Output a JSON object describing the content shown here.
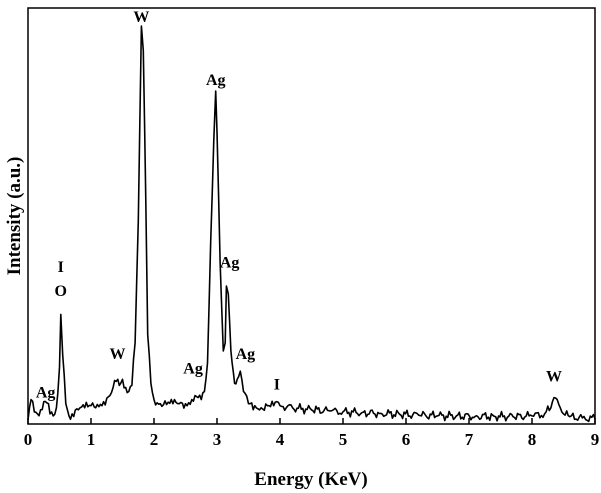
{
  "chart_data": {
    "type": "line",
    "title": "",
    "xlabel": "Energy (KeV)",
    "ylabel": "Intensity (a.u.)",
    "xlim": [
      0,
      9
    ],
    "ylim": [
      0,
      100
    ],
    "x_ticks": [
      "0",
      "1",
      "2",
      "3",
      "4",
      "5",
      "6",
      "7",
      "8",
      "9"
    ],
    "y_ticks_shown": false,
    "grid": false,
    "legend": "none",
    "line_color": "#000000",
    "series": [
      {
        "name": "",
        "points": [
          [
            0.0,
            1.0
          ],
          [
            0.05,
            6.0
          ],
          [
            0.1,
            3.0
          ],
          [
            0.15,
            2.5
          ],
          [
            0.2,
            3.5
          ],
          [
            0.25,
            5.5
          ],
          [
            0.3,
            5.2
          ],
          [
            0.35,
            2.5
          ],
          [
            0.4,
            2.0
          ],
          [
            0.45,
            4.0
          ],
          [
            0.5,
            14.0
          ],
          [
            0.52,
            27.0
          ],
          [
            0.55,
            17.0
          ],
          [
            0.6,
            5.0
          ],
          [
            0.65,
            2.0
          ],
          [
            0.7,
            2.5
          ],
          [
            0.8,
            3.5
          ],
          [
            0.9,
            4.0
          ],
          [
            1.0,
            4.5
          ],
          [
            1.1,
            4.8
          ],
          [
            1.2,
            5.5
          ],
          [
            1.3,
            7.0
          ],
          [
            1.35,
            9.0
          ],
          [
            1.4,
            10.5
          ],
          [
            1.45,
            9.5
          ],
          [
            1.5,
            11.0
          ],
          [
            1.55,
            9.0
          ],
          [
            1.6,
            8.0
          ],
          [
            1.65,
            9.5
          ],
          [
            1.7,
            20.0
          ],
          [
            1.75,
            50.0
          ],
          [
            1.8,
            98.0
          ],
          [
            1.83,
            92.0
          ],
          [
            1.87,
            55.0
          ],
          [
            1.9,
            22.0
          ],
          [
            1.95,
            10.0
          ],
          [
            2.0,
            6.0
          ],
          [
            2.1,
            5.0
          ],
          [
            2.2,
            4.8
          ],
          [
            2.3,
            5.0
          ],
          [
            2.4,
            5.0
          ],
          [
            2.5,
            5.0
          ],
          [
            2.6,
            6.0
          ],
          [
            2.65,
            7.0
          ],
          [
            2.7,
            6.5
          ],
          [
            2.75,
            6.0
          ],
          [
            2.8,
            8.0
          ],
          [
            2.85,
            15.0
          ],
          [
            2.9,
            45.0
          ],
          [
            2.95,
            70.0
          ],
          [
            2.98,
            82.0
          ],
          [
            3.0,
            72.0
          ],
          [
            3.05,
            40.0
          ],
          [
            3.1,
            18.0
          ],
          [
            3.13,
            20.0
          ],
          [
            3.15,
            34.0
          ],
          [
            3.18,
            32.0
          ],
          [
            3.22,
            18.0
          ],
          [
            3.28,
            10.0
          ],
          [
            3.32,
            11.0
          ],
          [
            3.37,
            13.0
          ],
          [
            3.42,
            8.0
          ],
          [
            3.5,
            5.0
          ],
          [
            3.6,
            4.5
          ],
          [
            3.7,
            4.0
          ],
          [
            3.8,
            4.5
          ],
          [
            3.9,
            4.5
          ],
          [
            3.95,
            5.5
          ],
          [
            4.0,
            4.5
          ],
          [
            4.2,
            4.0
          ],
          [
            4.5,
            3.5
          ],
          [
            4.8,
            3.2
          ],
          [
            5.0,
            3.0
          ],
          [
            5.3,
            2.8
          ],
          [
            5.6,
            2.6
          ],
          [
            5.9,
            2.4
          ],
          [
            6.2,
            2.2
          ],
          [
            6.5,
            2.0
          ],
          [
            6.8,
            2.0
          ],
          [
            7.1,
            1.9
          ],
          [
            7.4,
            1.9
          ],
          [
            7.7,
            1.8
          ],
          [
            8.0,
            2.0
          ],
          [
            8.2,
            2.5
          ],
          [
            8.3,
            4.0
          ],
          [
            8.35,
            6.5
          ],
          [
            8.4,
            6.0
          ],
          [
            8.45,
            4.0
          ],
          [
            8.5,
            2.5
          ],
          [
            8.6,
            1.8
          ],
          [
            8.8,
            1.5
          ],
          [
            9.0,
            1.3
          ]
        ]
      }
    ],
    "annotations": [
      {
        "text": "Ag",
        "x": 0.28,
        "y": 6.5
      },
      {
        "text": "I",
        "x": 0.52,
        "y": 37.5
      },
      {
        "text": "O",
        "x": 0.52,
        "y": 31.5
      },
      {
        "text": "W",
        "x": 1.42,
        "y": 16.0
      },
      {
        "text": "W",
        "x": 1.8,
        "y": 99.0
      },
      {
        "text": "Ag",
        "x": 2.62,
        "y": 12.5
      },
      {
        "text": "Ag",
        "x": 2.98,
        "y": 83.5
      },
      {
        "text": "Ag",
        "x": 3.2,
        "y": 38.5
      },
      {
        "text": "Ag",
        "x": 3.45,
        "y": 16.0
      },
      {
        "text": "I",
        "x": 3.95,
        "y": 8.5
      },
      {
        "text": "W",
        "x": 8.35,
        "y": 10.5
      }
    ]
  }
}
